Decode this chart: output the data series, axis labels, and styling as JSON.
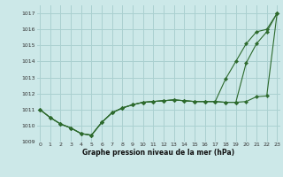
{
  "bg_color": "#cce8e8",
  "grid_color": "#aad0d0",
  "line_color": "#2d6a2d",
  "xlabel": "Graphe pression niveau de la mer (hPa)",
  "ylim": [
    1009,
    1017.5
  ],
  "xlim": [
    -0.3,
    23.3
  ],
  "yticks": [
    1009,
    1010,
    1011,
    1012,
    1013,
    1014,
    1015,
    1016,
    1017
  ],
  "xticks": [
    0,
    1,
    2,
    3,
    4,
    5,
    6,
    7,
    8,
    9,
    10,
    11,
    12,
    13,
    14,
    15,
    16,
    17,
    18,
    19,
    20,
    21,
    22,
    23
  ],
  "series": [
    {
      "x": [
        0,
        1,
        2,
        3,
        4,
        5,
        6,
        7,
        8,
        9,
        10,
        11,
        12,
        13,
        14,
        15,
        16,
        17,
        18,
        19,
        20,
        21,
        22,
        23
      ],
      "y": [
        1011.0,
        1010.5,
        1010.1,
        1009.85,
        1009.5,
        1009.4,
        1010.2,
        1010.8,
        1011.1,
        1011.3,
        1011.45,
        1011.5,
        1011.55,
        1011.6,
        1011.55,
        1011.5,
        1011.5,
        1011.5,
        1011.45,
        1011.45,
        1011.5,
        1011.8,
        1011.85,
        1017.0
      ]
    },
    {
      "x": [
        0,
        1,
        2,
        3,
        4,
        5,
        6,
        7,
        8,
        9,
        10,
        11,
        12,
        13,
        14,
        15,
        16,
        17,
        18,
        19,
        20,
        21,
        22,
        23
      ],
      "y": [
        1011.0,
        1010.5,
        1010.1,
        1009.85,
        1009.5,
        1009.4,
        1010.2,
        1010.8,
        1011.1,
        1011.3,
        1011.45,
        1011.5,
        1011.55,
        1011.6,
        1011.55,
        1011.5,
        1011.5,
        1011.5,
        1012.9,
        1014.0,
        1015.1,
        1015.85,
        1016.0,
        1017.0
      ]
    },
    {
      "x": [
        0,
        1,
        2,
        3,
        4,
        5,
        6,
        7,
        8,
        9,
        10,
        11,
        12,
        13,
        14,
        15,
        16,
        17,
        18,
        19,
        20,
        21,
        22,
        23
      ],
      "y": [
        1011.0,
        1010.5,
        1010.1,
        1009.85,
        1009.5,
        1009.4,
        1010.2,
        1010.8,
        1011.1,
        1011.3,
        1011.45,
        1011.5,
        1011.55,
        1011.6,
        1011.55,
        1011.5,
        1011.5,
        1011.5,
        1011.45,
        1011.45,
        1013.9,
        1015.1,
        1015.85,
        1017.0
      ]
    }
  ]
}
